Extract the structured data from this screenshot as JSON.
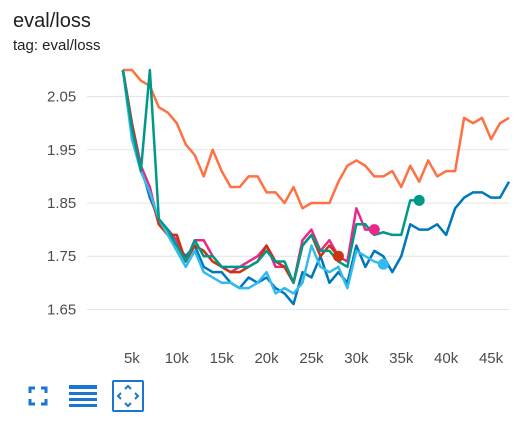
{
  "card": {
    "title": "eval/loss",
    "tag": "tag: eval/loss"
  },
  "toolbar": {
    "icons": [
      "fullscreen-icon",
      "data-table-icon",
      "fit-domain-icon"
    ],
    "accent": "#1976d2"
  },
  "chart_data": {
    "type": "line",
    "title": "eval/loss",
    "xlabel": "",
    "ylabel": "",
    "xlim": [
      0,
      47000
    ],
    "ylim": [
      1.6,
      2.1
    ],
    "xticks": [
      5000,
      10000,
      15000,
      20000,
      25000,
      30000,
      35000,
      40000,
      45000
    ],
    "xtick_labels": [
      "5k",
      "10k",
      "15k",
      "20k",
      "25k",
      "30k",
      "35k",
      "40k",
      "45k"
    ],
    "yticks": [
      1.65,
      1.75,
      1.85,
      1.95,
      2.05
    ],
    "ytick_labels": [
      "1.65",
      "1.75",
      "1.85",
      "1.95",
      "2.05"
    ],
    "grid": "horizontal",
    "legend": "none",
    "series": [
      {
        "color": "#ff7043",
        "x": [
          4000,
          5000,
          6000,
          7000,
          8000,
          9000,
          10000,
          11000,
          12000,
          13000,
          14000,
          15000,
          16000,
          17000,
          18000,
          19000,
          20000,
          21000,
          22000,
          23000,
          24000,
          25000,
          26000,
          27000,
          28000,
          29000,
          30000,
          31000,
          32000,
          33000,
          34000,
          35000,
          36000,
          37000,
          38000,
          39000,
          40000,
          41000,
          42000,
          43000,
          44000,
          45000,
          46000,
          47000
        ],
        "values": [
          2.15,
          2.1,
          2.08,
          2.07,
          2.03,
          2.02,
          2.0,
          1.96,
          1.94,
          1.9,
          1.95,
          1.91,
          1.88,
          1.88,
          1.9,
          1.9,
          1.87,
          1.87,
          1.85,
          1.88,
          1.84,
          1.85,
          1.85,
          1.85,
          1.89,
          1.92,
          1.93,
          1.92,
          1.9,
          1.9,
          1.91,
          1.88,
          1.92,
          1.89,
          1.93,
          1.9,
          1.91,
          1.91,
          2.01,
          2.0,
          2.01,
          1.97,
          2.0,
          2.01
        ]
      },
      {
        "color": "#0077bb",
        "x": [
          4000,
          5000,
          6000,
          7000,
          8000,
          9000,
          10000,
          11000,
          12000,
          13000,
          14000,
          15000,
          16000,
          17000,
          18000,
          19000,
          20000,
          21000,
          22000,
          23000,
          24000,
          25000,
          26000,
          27000,
          28000,
          29000,
          30000,
          31000,
          32000,
          33000,
          34000,
          35000,
          36000,
          37000,
          38000,
          39000,
          40000,
          41000,
          42000,
          43000,
          44000,
          45000,
          46000,
          47000
        ],
        "values": [
          2.15,
          2.0,
          1.92,
          1.86,
          1.82,
          1.79,
          1.77,
          1.75,
          1.77,
          1.73,
          1.72,
          1.72,
          1.7,
          1.69,
          1.71,
          1.7,
          1.71,
          1.69,
          1.68,
          1.66,
          1.72,
          1.71,
          1.75,
          1.7,
          1.72,
          1.7,
          1.77,
          1.73,
          1.76,
          1.75,
          1.72,
          1.75,
          1.81,
          1.8,
          1.8,
          1.81,
          1.79,
          1.84,
          1.86,
          1.87,
          1.87,
          1.86,
          1.86,
          1.89
        ]
      },
      {
        "color": "#e7298a",
        "marker": 32000,
        "x": [
          4000,
          5000,
          6000,
          7000,
          8000,
          9000,
          10000,
          11000,
          12000,
          13000,
          14000,
          15000,
          16000,
          17000,
          18000,
          19000,
          20000,
          21000,
          22000,
          23000,
          24000,
          25000,
          26000,
          27000,
          28000,
          29000,
          30000,
          31000,
          32000
        ],
        "values": [
          2.15,
          2.0,
          1.92,
          1.88,
          1.81,
          1.8,
          1.78,
          1.74,
          1.78,
          1.78,
          1.75,
          1.73,
          1.72,
          1.73,
          1.74,
          1.75,
          1.77,
          1.73,
          1.73,
          1.7,
          1.78,
          1.8,
          1.76,
          1.78,
          1.75,
          1.74,
          1.84,
          1.8,
          1.8
        ]
      },
      {
        "color": "#cc3311",
        "marker": 28000,
        "x": [
          4000,
          5000,
          6000,
          7000,
          8000,
          9000,
          10000,
          11000,
          12000,
          13000,
          14000,
          15000,
          16000,
          17000,
          18000,
          19000,
          20000,
          21000,
          22000,
          23000,
          24000,
          25000,
          26000,
          27000,
          28000
        ],
        "values": [
          2.15,
          2.0,
          1.91,
          1.87,
          1.81,
          1.79,
          1.79,
          1.74,
          1.77,
          1.76,
          1.74,
          1.73,
          1.72,
          1.72,
          1.73,
          1.74,
          1.77,
          1.74,
          1.73,
          1.7,
          1.77,
          1.79,
          1.75,
          1.77,
          1.75
        ]
      },
      {
        "color": "#33bbee",
        "marker": 33000,
        "x": [
          4000,
          5000,
          6000,
          7000,
          8000,
          9000,
          10000,
          11000,
          12000,
          13000,
          14000,
          15000,
          16000,
          17000,
          18000,
          19000,
          20000,
          21000,
          22000,
          23000,
          24000,
          25000,
          26000,
          27000,
          28000,
          29000,
          30000,
          31000,
          32000,
          33000
        ],
        "values": [
          2.1,
          1.97,
          1.91,
          1.87,
          1.82,
          1.79,
          1.76,
          1.73,
          1.76,
          1.72,
          1.71,
          1.7,
          1.7,
          1.69,
          1.69,
          1.7,
          1.72,
          1.68,
          1.69,
          1.68,
          1.7,
          1.77,
          1.73,
          1.72,
          1.73,
          1.69,
          1.76,
          1.75,
          1.74,
          1.735
        ]
      },
      {
        "color": "#009988",
        "marker": 37000,
        "x": [
          4000,
          5000,
          6000,
          7000,
          8000,
          9000,
          10000,
          11000,
          12000,
          13000,
          14000,
          15000,
          16000,
          17000,
          18000,
          19000,
          20000,
          21000,
          22000,
          23000,
          24000,
          25000,
          26000,
          27000,
          28000,
          29000,
          30000,
          31000,
          32000,
          33000,
          34000,
          35000,
          36000,
          37000
        ],
        "values": [
          2.1,
          1.99,
          1.91,
          2.15,
          1.82,
          1.8,
          1.77,
          1.74,
          1.78,
          1.75,
          1.75,
          1.73,
          1.73,
          1.73,
          1.73,
          1.74,
          1.76,
          1.74,
          1.74,
          1.7,
          1.77,
          1.79,
          1.76,
          1.76,
          1.74,
          1.73,
          1.81,
          1.81,
          1.79,
          1.795,
          1.79,
          1.79,
          1.855,
          1.855
        ]
      }
    ]
  }
}
